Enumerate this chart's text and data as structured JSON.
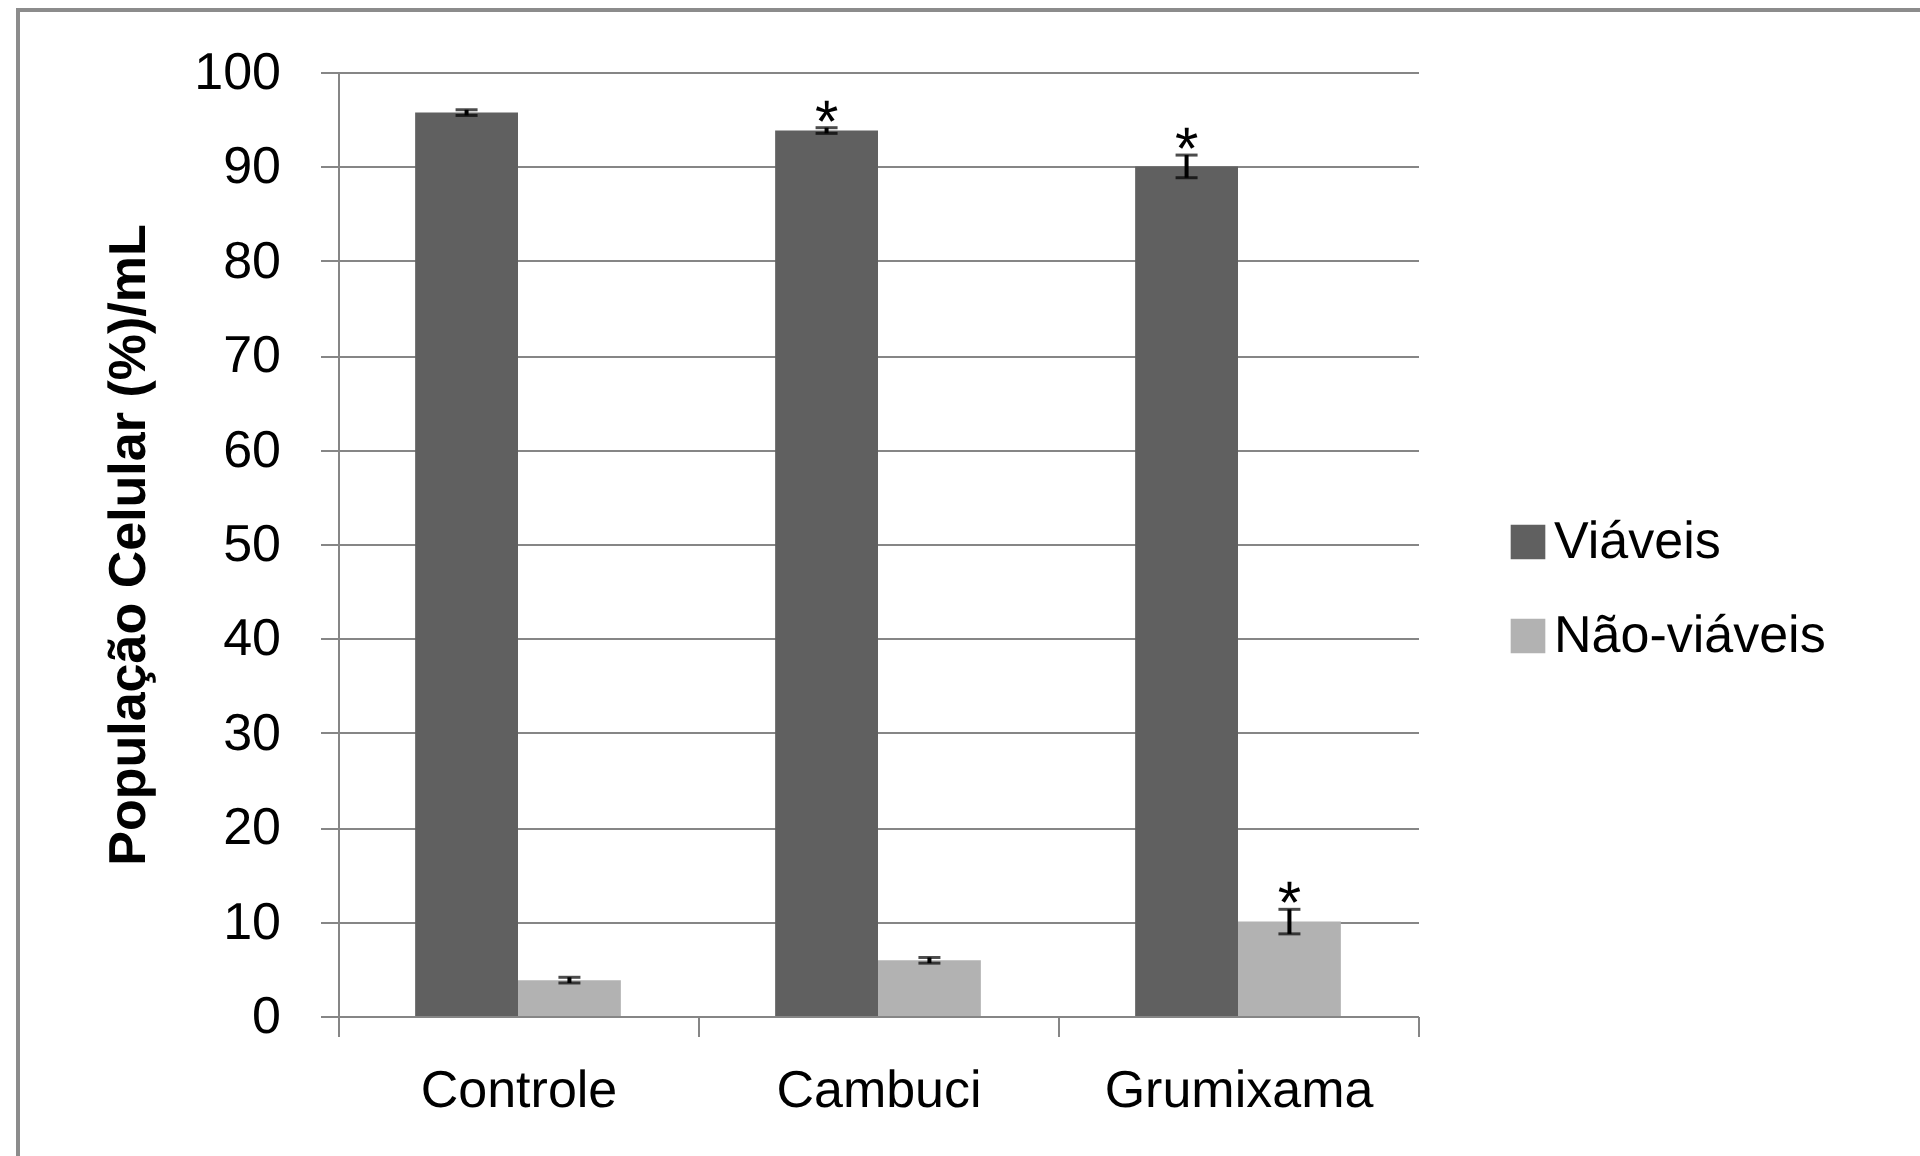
{
  "chart_data": {
    "type": "bar",
    "categories": [
      "Controle",
      "Cambuci",
      "Grumixama"
    ],
    "ylabel": "População Celular (%)/mL",
    "ylim": [
      0,
      100
    ],
    "yticks": [
      0,
      10,
      20,
      30,
      40,
      50,
      60,
      70,
      80,
      90,
      100
    ],
    "grid": "y",
    "legend": "right",
    "series": [
      {
        "name": "Viáveis",
        "color": "#606060",
        "values": [
          95.7,
          93.8,
          90
        ],
        "errors": [
          0.3,
          0.3,
          1.2
        ]
      },
      {
        "name": "Não-viáveis",
        "color": "#b2b2b2",
        "values": [
          3.8,
          5.9,
          10
        ],
        "errors": [
          0.3,
          0.3,
          1.3
        ]
      }
    ],
    "annotations": [
      {
        "text": "*",
        "x": "Cambuci",
        "y": 93.8
      },
      {
        "text": "*",
        "x": "Grumixama",
        "y": 90
      },
      {
        "text": "*",
        "x": "Grumixama",
        "y": 10
      }
    ]
  }
}
